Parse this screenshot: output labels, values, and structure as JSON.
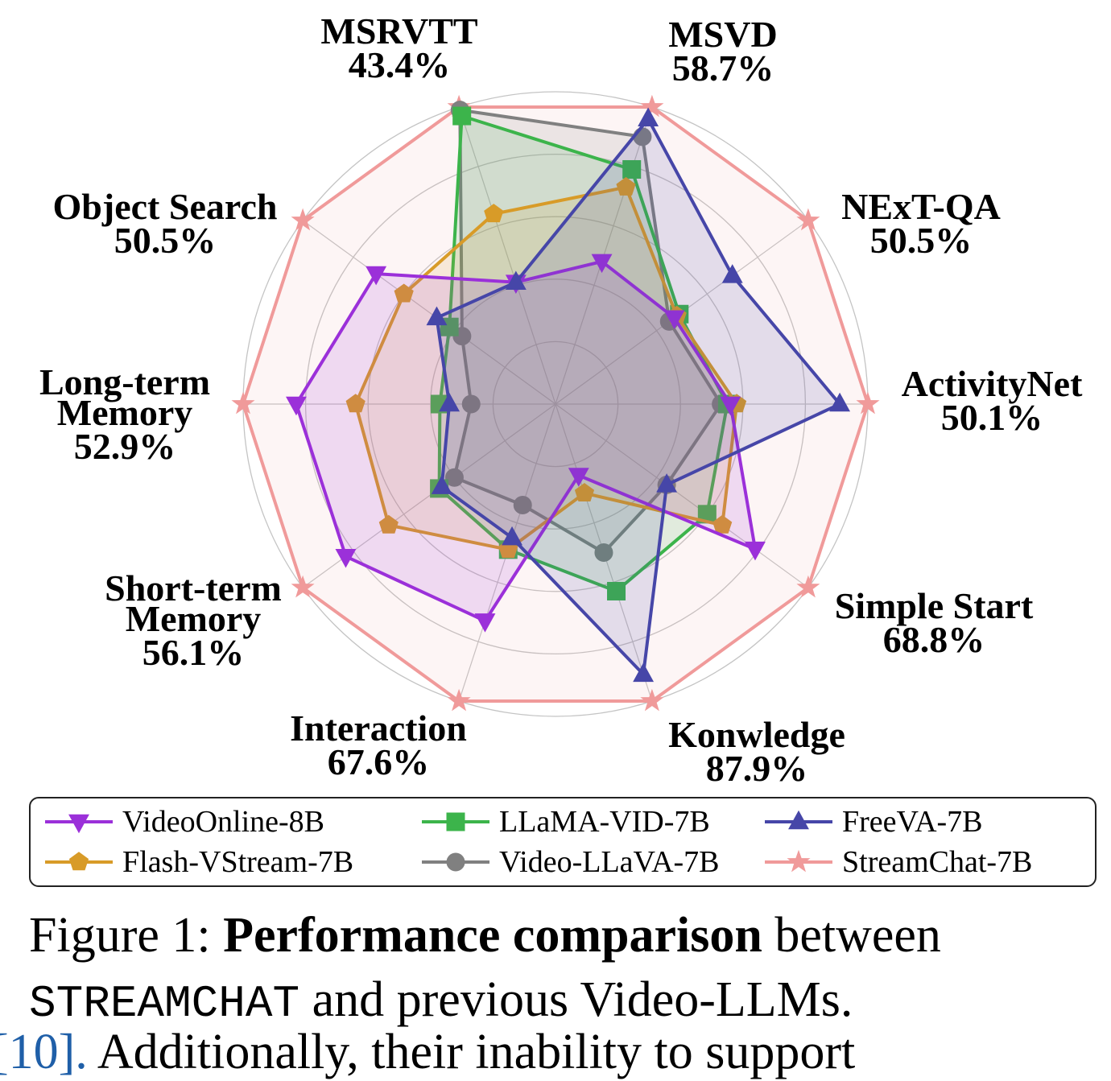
{
  "chart_data": {
    "type": "radar",
    "axes": [
      {
        "name": "MSVD",
        "value_text": "58.7%"
      },
      {
        "name": "NExT-QA",
        "value_text": "50.5%"
      },
      {
        "name": "ActivityNet",
        "value_text": "50.1%"
      },
      {
        "name": "Simple Start",
        "value_text": "68.8%"
      },
      {
        "name": "Konwledge",
        "value_text": "87.9%"
      },
      {
        "name": "Interaction",
        "value_text": "67.6%"
      },
      {
        "name": "Short-term Memory",
        "value_text": "56.1%"
      },
      {
        "name": "Long-term Memory",
        "value_text": "52.9%"
      },
      {
        "name": "Object Search",
        "value_text": "50.5%"
      },
      {
        "name": "MSRVTT",
        "value_text": "43.4%"
      }
    ],
    "scale": {
      "min": 0,
      "max": 1,
      "rings": [
        0.2,
        0.4,
        0.6,
        0.8
      ]
    },
    "series": [
      {
        "name": "VideoOnline-8B",
        "color": "#9b30d9",
        "marker": "triangle-down",
        "values": [
          0.48,
          0.47,
          0.56,
          0.79,
          0.24,
          0.73,
          0.83,
          0.83,
          0.71,
          0.41
        ]
      },
      {
        "name": "LLaMA-VID-7B",
        "color": "#3cb44b",
        "marker": "square",
        "values": [
          0.79,
          0.49,
          0.55,
          0.6,
          0.63,
          0.49,
          0.46,
          0.37,
          0.42,
          0.97
        ]
      },
      {
        "name": "FreeVA-7B",
        "color": "#4646a8",
        "marker": "triangle-up",
        "values": [
          0.96,
          0.7,
          0.91,
          0.44,
          0.91,
          0.45,
          0.45,
          0.34,
          0.47,
          0.41
        ]
      },
      {
        "name": "Flash-VStream-7B",
        "color": "#d89b28",
        "marker": "pentagon",
        "values": [
          0.73,
          0.48,
          0.58,
          0.66,
          0.3,
          0.49,
          0.66,
          0.64,
          0.6,
          0.64
        ]
      },
      {
        "name": "Video-LLaVA-7B",
        "color": "#808080",
        "marker": "circle",
        "values": [
          0.9,
          0.45,
          0.53,
          0.44,
          0.5,
          0.34,
          0.4,
          0.27,
          0.37,
          0.99
        ]
      },
      {
        "name": "StreamChat-7B",
        "color": "#f09a9a",
        "marker": "star",
        "values": [
          1.0,
          1.0,
          1.0,
          1.0,
          1.0,
          1.0,
          1.0,
          1.0,
          1.0,
          1.0
        ]
      }
    ],
    "legend": "bottom"
  },
  "caption": {
    "prefix": "Figure 1: ",
    "bold": "Performance comparison",
    "mid": " between",
    "mono": "STREAMCHAT",
    "suffix": " and previous Video-LLMs."
  },
  "cutoff_text": {
    "ref": "[10].",
    "rest": " Additionally, their inability to support"
  }
}
